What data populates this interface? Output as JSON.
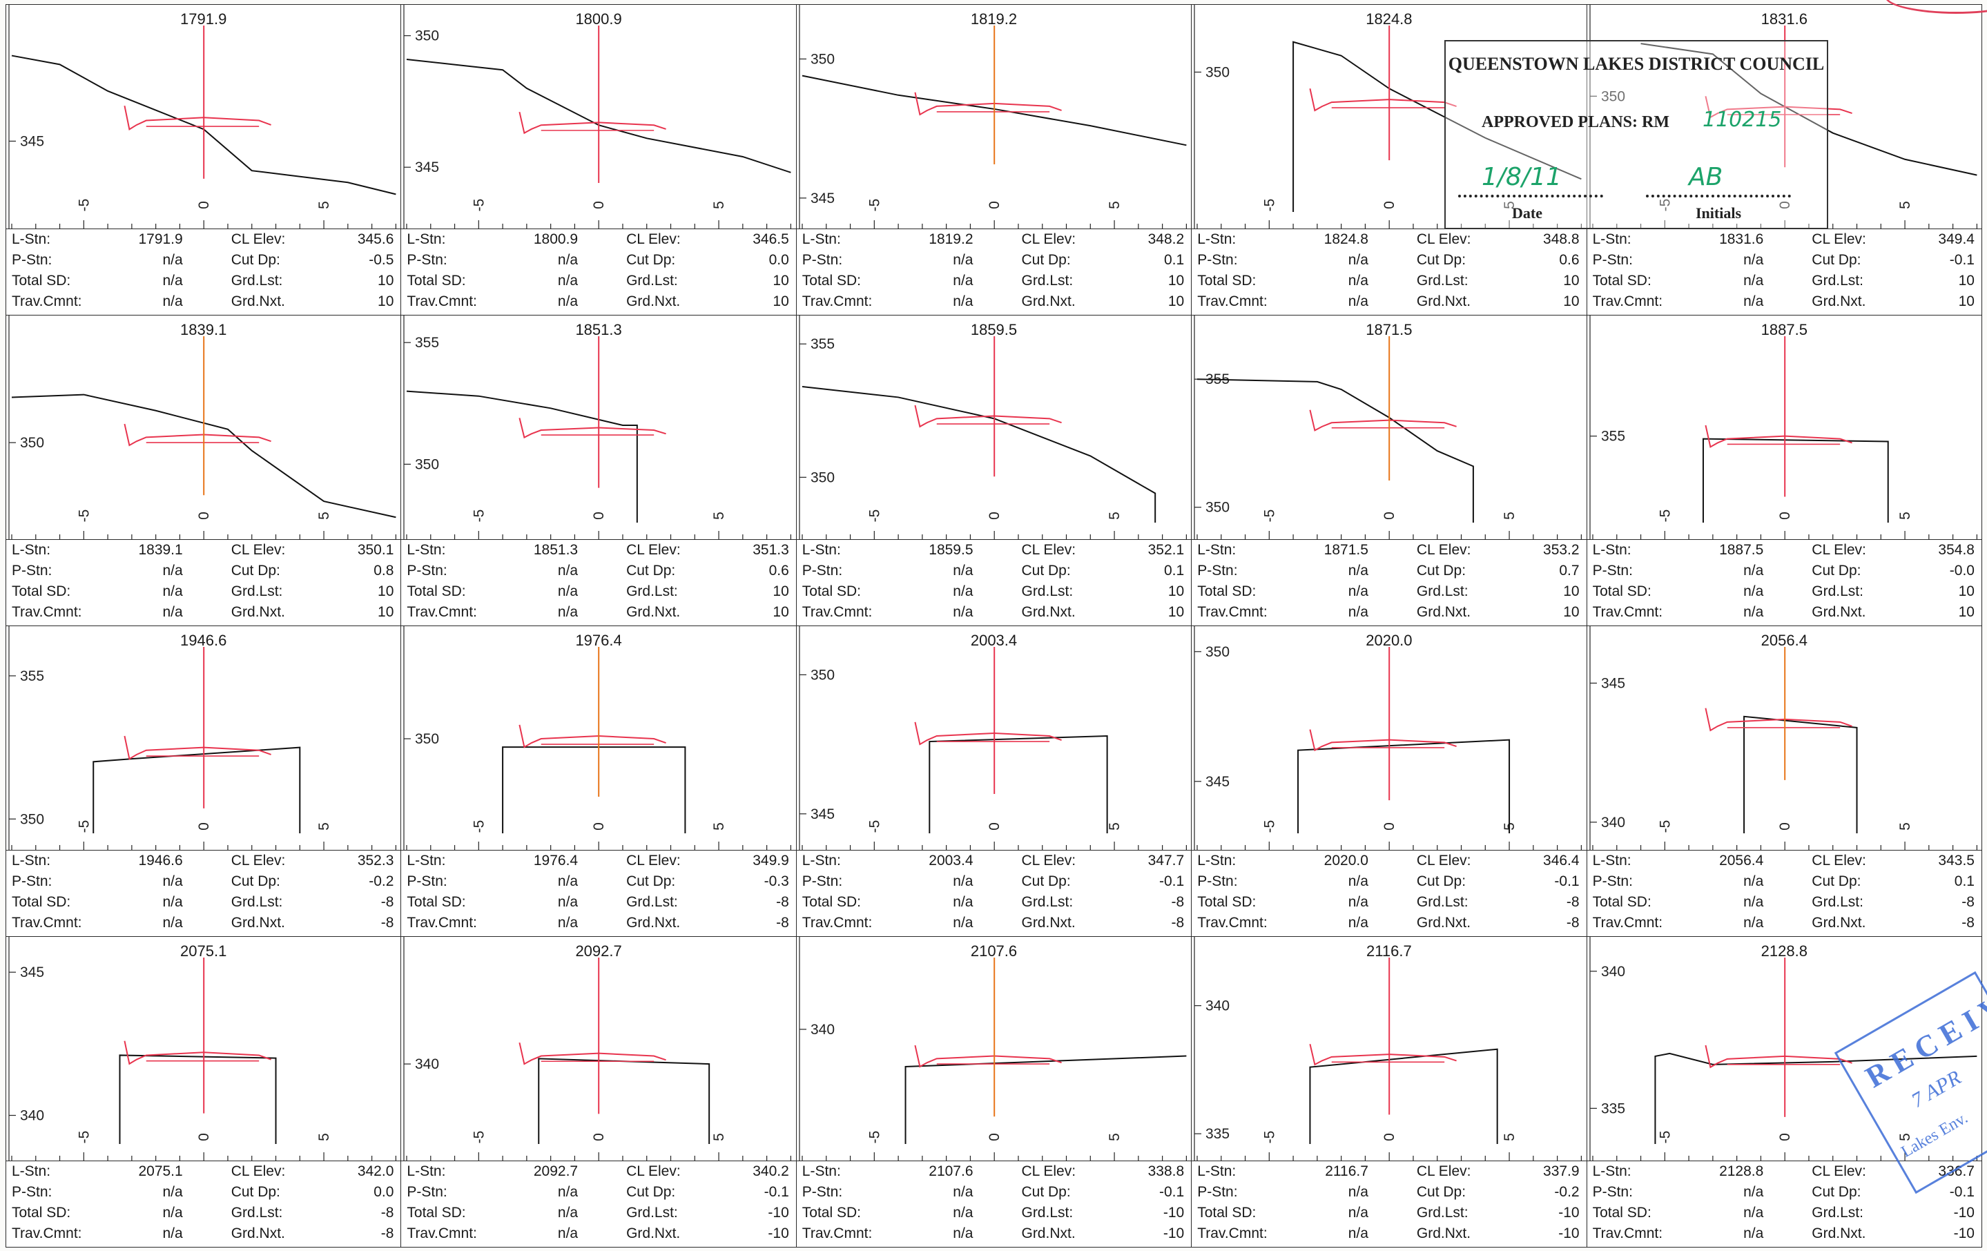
{
  "labels": {
    "lstn": "L-Stn:",
    "pstn": "P-Stn:",
    "totalsd": "Total SD:",
    "trav": "Trav.Cmnt:",
    "clelev": "CL Elev:",
    "cutdp": "Cut Dp:",
    "grdlst": "Grd.Lst:",
    "grdnxt": "Grd.Nxt."
  },
  "stamp": {
    "title": "QUEENSTOWN LAKES DISTRICT COUNCIL",
    "approved": "APPROVED PLANS:  RM",
    "rm_number": "110215",
    "date_label": "Date",
    "initials_label": "Initials",
    "date_handwritten": "1/8/11",
    "initials_handwritten": "AB"
  },
  "received_stamp": {
    "line1": "RECEIVED",
    "line2": "7 APR",
    "line3": "Lakes Env."
  },
  "chart_data": [
    {
      "type": "line",
      "title": "1791.9",
      "xticks": [
        -5,
        0,
        5
      ],
      "yticks": [
        345
      ],
      "ylim": [
        342.6,
        349.2
      ],
      "ground": [
        [
          -8,
          347.9
        ],
        [
          -6,
          347.6
        ],
        [
          -4,
          346.7
        ],
        [
          0,
          345.4
        ],
        [
          2,
          344.0
        ],
        [
          6,
          343.6
        ],
        [
          8,
          343.2
        ]
      ],
      "cl_elev": 345.6,
      "cut_dp": -0.5,
      "grd_lst": 10,
      "grd_nxt": 10,
      "lstn": "1791.9",
      "pstn": "n/a",
      "total_sd": "n/a",
      "trav_cmnt": "n/a"
    },
    {
      "type": "line",
      "title": "1800.9",
      "xticks": [
        -5,
        0,
        5
      ],
      "yticks": [
        345,
        350
      ],
      "ylim": [
        343.3,
        350.7
      ],
      "ground": [
        [
          -8,
          349.1
        ],
        [
          -6,
          348.9
        ],
        [
          -4,
          348.7
        ],
        [
          -3,
          348.0
        ],
        [
          0,
          346.6
        ],
        [
          2,
          346.1
        ],
        [
          6,
          345.4
        ],
        [
          8,
          344.8
        ]
      ],
      "cl_elev": 346.5,
      "cut_dp": 0.0,
      "grd_lst": 10,
      "grd_nxt": 10,
      "lstn": "1800.9",
      "pstn": "n/a",
      "total_sd": "n/a",
      "trav_cmnt": "n/a"
    },
    {
      "type": "line",
      "title": "1819.2",
      "xticks": [
        -5,
        0,
        5
      ],
      "yticks": [
        345,
        350
      ],
      "ylim": [
        344.5,
        351.5
      ],
      "ground": [
        [
          -8,
          349.4
        ],
        [
          -4,
          348.7
        ],
        [
          0,
          348.2
        ],
        [
          4,
          347.6
        ],
        [
          8,
          346.9
        ]
      ],
      "cl_elev": 348.2,
      "cut_dp": 0.1,
      "grd_lst": 10,
      "grd_nxt": 10,
      "lstn": "1819.2",
      "pstn": "n/a",
      "total_sd": "n/a",
      "trav_cmnt": "n/a"
    },
    {
      "type": "line",
      "title": "1824.8",
      "xticks": [
        -5,
        0,
        5
      ],
      "yticks": [
        350
      ],
      "ylim": [
        344.9,
        352.0
      ],
      "ground": [
        [
          -4,
          344.9
        ],
        [
          -4,
          351.1
        ],
        [
          -2,
          350.6
        ],
        [
          0,
          349.4
        ],
        [
          4,
          347.6
        ],
        [
          8,
          346.1
        ]
      ],
      "cl_elev": 348.8,
      "cut_dp": 0.6,
      "grd_lst": 10,
      "grd_nxt": 10,
      "lstn": "1824.8",
      "pstn": "n/a",
      "total_sd": "n/a",
      "trav_cmnt": "n/a"
    },
    {
      "type": "line",
      "title": "1831.6",
      "xticks": [
        -5,
        0,
        5
      ],
      "yticks": [
        350
      ],
      "ylim": [
        345.6,
        353.0
      ],
      "ground": [
        [
          -6,
          352.0
        ],
        [
          -3,
          351.6
        ],
        [
          -1,
          350.1
        ],
        [
          0,
          349.6
        ],
        [
          2,
          348.6
        ],
        [
          5,
          347.6
        ],
        [
          8,
          347.0
        ]
      ],
      "cl_elev": 349.4,
      "cut_dp": -0.1,
      "grd_lst": 10,
      "grd_nxt": 10,
      "lstn": "1831.6",
      "pstn": "n/a",
      "total_sd": "n/a",
      "trav_cmnt": "n/a"
    },
    {
      "type": "line",
      "title": "1839.1",
      "xticks": [
        -5,
        0,
        5
      ],
      "yticks": [
        350
      ],
      "ylim": [
        347.0,
        354.3
      ],
      "ground": [
        [
          -8,
          351.7
        ],
        [
          -5,
          351.8
        ],
        [
          -2,
          351.2
        ],
        [
          1,
          350.5
        ],
        [
          2,
          349.7
        ],
        [
          5,
          347.8
        ],
        [
          8,
          347.2
        ]
      ],
      "cl_elev": 350.1,
      "cut_dp": 0.8,
      "grd_lst": 10,
      "grd_nxt": 10,
      "lstn": "1839.1",
      "pstn": "n/a",
      "total_sd": "n/a",
      "trav_cmnt": "n/a"
    },
    {
      "type": "line",
      "title": "1851.3",
      "xticks": [
        -5,
        0,
        5
      ],
      "yticks": [
        350,
        355
      ],
      "ylim": [
        347.6,
        355.6
      ],
      "ground": [
        [
          -8,
          353.0
        ],
        [
          -5,
          352.8
        ],
        [
          -2,
          352.3
        ],
        [
          1,
          351.6
        ],
        [
          1.6,
          351.6
        ],
        [
          1.6,
          347.6
        ]
      ],
      "cl_elev": 351.3,
      "cut_dp": 0.6,
      "grd_lst": 10,
      "grd_nxt": 10,
      "lstn": "1851.3",
      "pstn": "n/a",
      "total_sd": "n/a",
      "trav_cmnt": "n/a"
    },
    {
      "type": "line",
      "title": "1859.5",
      "xticks": [
        -5,
        0,
        5
      ],
      "yticks": [
        350,
        355
      ],
      "ylim": [
        348.3,
        355.6
      ],
      "ground": [
        [
          -8,
          353.4
        ],
        [
          -4,
          353.0
        ],
        [
          0,
          352.2
        ],
        [
          4,
          350.8
        ],
        [
          6.7,
          349.4
        ],
        [
          6.7,
          348.3
        ]
      ],
      "cl_elev": 352.1,
      "cut_dp": 0.1,
      "grd_lst": 10,
      "grd_nxt": 10,
      "lstn": "1859.5",
      "pstn": "n/a",
      "total_sd": "n/a",
      "trav_cmnt": "n/a"
    },
    {
      "type": "line",
      "title": "1871.5",
      "xticks": [
        -5,
        0,
        5
      ],
      "yticks": [
        350,
        355
      ],
      "ylim": [
        349.4,
        357.0
      ],
      "ground": [
        [
          -8,
          355.0
        ],
        [
          -3,
          354.9
        ],
        [
          -2,
          354.6
        ],
        [
          0,
          353.5
        ],
        [
          2,
          352.2
        ],
        [
          3.5,
          351.6
        ],
        [
          3.5,
          349.4
        ]
      ],
      "cl_elev": 353.2,
      "cut_dp": 0.7,
      "grd_lst": 10,
      "grd_nxt": 10,
      "lstn": "1871.5",
      "pstn": "n/a",
      "total_sd": "n/a",
      "trav_cmnt": "n/a"
    },
    {
      "type": "line",
      "title": "1887.5",
      "xticks": [
        -5,
        0,
        5
      ],
      "yticks": [
        355
      ],
      "ylim": [
        351.8,
        359.0
      ],
      "ground": [
        [
          -3.4,
          351.8
        ],
        [
          -3.4,
          354.9
        ],
        [
          4.3,
          354.8
        ],
        [
          4.3,
          351.8
        ]
      ],
      "cl_elev": 354.8,
      "cut_dp": -0.0,
      "grd_lst": 10,
      "grd_nxt": 10,
      "lstn": "1887.5",
      "pstn": "n/a",
      "total_sd": "n/a",
      "trav_cmnt": "n/a"
    },
    {
      "type": "line",
      "title": "1946.6",
      "xticks": [
        -5,
        0,
        5
      ],
      "yticks": [
        350,
        355
      ],
      "ylim": [
        349.5,
        356.3
      ],
      "ground": [
        [
          -4.6,
          349.5
        ],
        [
          -4.6,
          352.0
        ],
        [
          -3,
          352.1
        ],
        [
          4,
          352.5
        ],
        [
          4,
          349.5
        ]
      ],
      "cl_elev": 352.3,
      "cut_dp": -0.2,
      "grd_lst": -8,
      "grd_nxt": -8,
      "lstn": "1946.6",
      "pstn": "n/a",
      "total_sd": "n/a",
      "trav_cmnt": "n/a"
    },
    {
      "type": "line",
      "title": "1976.4",
      "xticks": [
        -5,
        0,
        5
      ],
      "yticks": [
        350
      ],
      "ylim": [
        346.6,
        353.6
      ],
      "ground": [
        [
          -4,
          346.6
        ],
        [
          -4,
          349.7
        ],
        [
          3.6,
          349.7
        ],
        [
          3.6,
          346.6
        ]
      ],
      "cl_elev": 349.9,
      "cut_dp": -0.3,
      "grd_lst": -8,
      "grd_nxt": -8,
      "lstn": "1976.4",
      "pstn": "n/a",
      "total_sd": "n/a",
      "trav_cmnt": "n/a"
    },
    {
      "type": "line",
      "title": "2003.4",
      "xticks": [
        -5,
        0,
        5
      ],
      "yticks": [
        345,
        350
      ],
      "ylim": [
        344.3,
        351.3
      ],
      "ground": [
        [
          -2.7,
          344.3
        ],
        [
          -2.7,
          347.6
        ],
        [
          4.7,
          347.8
        ],
        [
          4.7,
          344.3
        ]
      ],
      "cl_elev": 347.7,
      "cut_dp": -0.1,
      "grd_lst": -8,
      "grd_nxt": -8,
      "lstn": "2003.4",
      "pstn": "n/a",
      "total_sd": "n/a",
      "trav_cmnt": "n/a"
    },
    {
      "type": "line",
      "title": "2020.0",
      "xticks": [
        -5,
        0,
        5
      ],
      "yticks": [
        345,
        350
      ],
      "ylim": [
        343.0,
        350.5
      ],
      "ground": [
        [
          -3.8,
          343.0
        ],
        [
          -3.8,
          346.2
        ],
        [
          5,
          346.6
        ],
        [
          5,
          343.0
        ]
      ],
      "cl_elev": 346.4,
      "cut_dp": -0.1,
      "grd_lst": -8,
      "grd_nxt": -8,
      "lstn": "2020.0",
      "pstn": "n/a",
      "total_sd": "n/a",
      "trav_cmnt": "n/a"
    },
    {
      "type": "line",
      "title": "2056.4",
      "xticks": [
        -5,
        0,
        5
      ],
      "yticks": [
        340,
        345
      ],
      "ylim": [
        339.6,
        346.6
      ],
      "ground": [
        [
          -1.7,
          339.6
        ],
        [
          -1.7,
          343.8
        ],
        [
          3,
          343.4
        ],
        [
          3,
          339.6
        ]
      ],
      "cl_elev": 343.5,
      "cut_dp": 0.1,
      "grd_lst": -8,
      "grd_nxt": -8,
      "lstn": "2056.4",
      "pstn": "n/a",
      "total_sd": "n/a",
      "trav_cmnt": "n/a"
    },
    {
      "type": "line",
      "title": "2075.1",
      "xticks": [
        -5,
        0,
        5
      ],
      "yticks": [
        340,
        345
      ],
      "ylim": [
        339.0,
        345.8
      ],
      "ground": [
        [
          -3.5,
          339.0
        ],
        [
          -3.5,
          342.1
        ],
        [
          3,
          342.0
        ],
        [
          3,
          339.0
        ]
      ],
      "cl_elev": 342.0,
      "cut_dp": 0.0,
      "grd_lst": -8,
      "grd_nxt": -8,
      "lstn": "2075.1",
      "pstn": "n/a",
      "total_sd": "n/a",
      "trav_cmnt": "n/a"
    },
    {
      "type": "line",
      "title": "2092.7",
      "xticks": [
        -5,
        0,
        5
      ],
      "yticks": [
        340
      ],
      "ylim": [
        337.0,
        344.3
      ],
      "ground": [
        [
          -2.5,
          337.0
        ],
        [
          -2.5,
          340.2
        ],
        [
          4.6,
          340.0
        ],
        [
          4.6,
          337.0
        ]
      ],
      "cl_elev": 340.2,
      "cut_dp": -0.1,
      "grd_lst": -10,
      "grd_nxt": -10,
      "lstn": "2092.7",
      "pstn": "n/a",
      "total_sd": "n/a",
      "trav_cmnt": "n/a"
    },
    {
      "type": "line",
      "title": "2107.6",
      "xticks": [
        -5,
        0,
        5
      ],
      "yticks": [
        340
      ],
      "ylim": [
        335.7,
        343.0
      ],
      "ground": [
        [
          -3.7,
          335.7
        ],
        [
          -3.7,
          338.6
        ],
        [
          8,
          339.0
        ]
      ],
      "cl_elev": 338.8,
      "cut_dp": -0.1,
      "grd_lst": -10,
      "grd_nxt": -10,
      "lstn": "2107.6",
      "pstn": "n/a",
      "total_sd": "n/a",
      "trav_cmnt": "n/a"
    },
    {
      "type": "line",
      "title": "2116.7",
      "xticks": [
        -5,
        0,
        5
      ],
      "yticks": [
        335,
        340
      ],
      "ylim": [
        334.6,
        342.2
      ],
      "ground": [
        [
          -3.3,
          334.6
        ],
        [
          -3.3,
          337.6
        ],
        [
          4.5,
          338.3
        ],
        [
          4.5,
          334.6
        ]
      ],
      "cl_elev": 337.9,
      "cut_dp": -0.2,
      "grd_lst": -10,
      "grd_nxt": -10,
      "lstn": "2116.7",
      "pstn": "n/a",
      "total_sd": "n/a",
      "trav_cmnt": "n/a"
    },
    {
      "type": "line",
      "title": "2128.8",
      "xticks": [
        -5,
        0,
        5
      ],
      "yticks": [
        335,
        340
      ],
      "ylim": [
        333.7,
        340.8
      ],
      "ground": [
        [
          -5.4,
          333.7
        ],
        [
          -5.4,
          336.9
        ],
        [
          -4.8,
          337.0
        ],
        [
          -3,
          336.6
        ],
        [
          2,
          336.7
        ],
        [
          8,
          336.9
        ]
      ],
      "cl_elev": 336.7,
      "cut_dp": -0.1,
      "grd_lst": -10,
      "grd_nxt": -10,
      "lstn": "2128.8",
      "pstn": "n/a",
      "total_sd": "n/a",
      "trav_cmnt": "n/a"
    }
  ]
}
